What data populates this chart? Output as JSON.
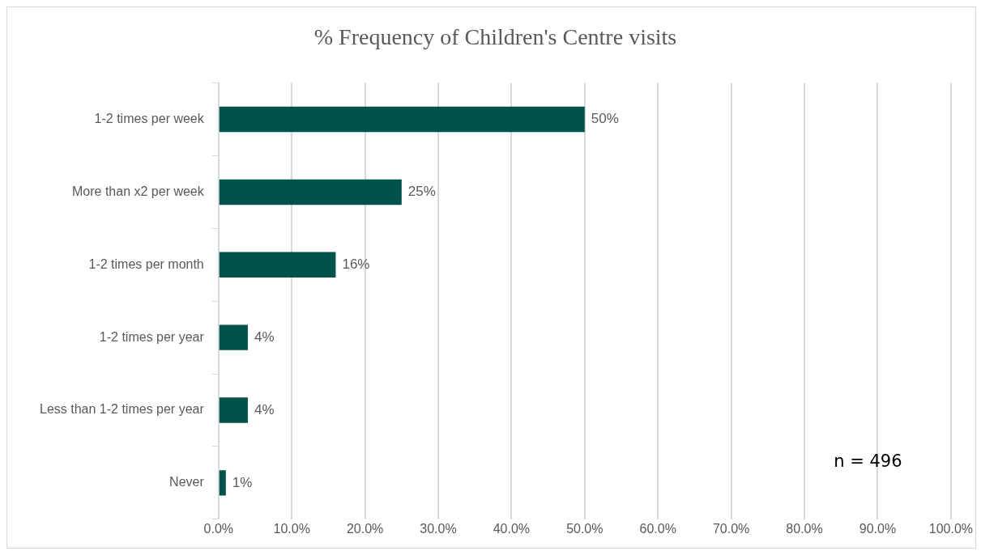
{
  "chart_data": {
    "type": "bar",
    "orientation": "horizontal",
    "title": "% Frequency of Children's Centre visits",
    "categories": [
      "1-2 times per week",
      "More than x2 per week",
      "1-2 times per month",
      "1-2 times per year",
      "Less than 1-2 times per year",
      "Never"
    ],
    "values": [
      50,
      25,
      16,
      4,
      4,
      1
    ],
    "value_labels": [
      "50%",
      "25%",
      "16%",
      "4%",
      "4%",
      "1%"
    ],
    "color": "#00524a",
    "xlim": [
      0,
      100
    ],
    "xticks": [
      {
        "value": 0,
        "label": "0.0%"
      },
      {
        "value": 10,
        "label": "10.0%"
      },
      {
        "value": 20,
        "label": "20.0%"
      },
      {
        "value": 30,
        "label": "30.0%"
      },
      {
        "value": 40,
        "label": "40.0%"
      },
      {
        "value": 50,
        "label": "50.0%"
      },
      {
        "value": 60,
        "label": "60.0%"
      },
      {
        "value": 70,
        "label": "70.0%"
      },
      {
        "value": 80,
        "label": "80.0%"
      },
      {
        "value": 90,
        "label": "90.0%"
      },
      {
        "value": 100,
        "label": "100.0%"
      }
    ],
    "grid": "x",
    "legend": false,
    "annotations": [
      "n = 496"
    ]
  }
}
